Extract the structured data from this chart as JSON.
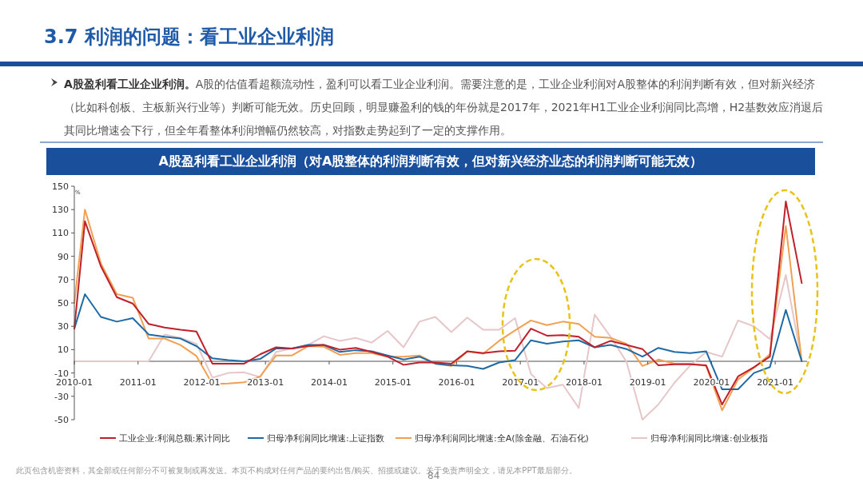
{
  "chart_data": {
    "type": "line",
    "title": "3.7 利润的问题：看工业企业利润",
    "subtitle": "A股盈利看工业企业利润（对A股整体的利润判断有效，但对新兴经济业态的利润判断可能无效）",
    "annotations": [
      "A股盈利看工业企业利润。",
      "A股的估值看超额流动性，盈利可以看工业企业利润。需要注意的是，工业企业利润对A股整体的利润判断有效，但对新兴经济（比如科创板、主板新兴行业等）判断可能无效。历史回顾，明显赚盈利的钱的年份就是2017年，2021年H1工业企业利润同比高增，H2基数效应消退后其同比增速会下行，但全年看整体利润增幅仍然较高，对指数走势起到了一定的支撑作用。",
      "此页包含机密资料，其全部或任何部分不可被复制或再发送。本页不构成对任何产品的要约出售/购买、招揽或建议。关于免责声明全文，请见本PPT最后部分。",
      "84"
    ],
    "ylabel": "%",
    "x": [
      "2010-01",
      "2010-03",
      "2010-06",
      "2010-09",
      "2010-12",
      "2011-03",
      "2011-06",
      "2011-09",
      "2011-12",
      "2012-03",
      "2012-06",
      "2012-09",
      "2012-12",
      "2013-03",
      "2013-06",
      "2013-09",
      "2013-12",
      "2014-03",
      "2014-06",
      "2014-09",
      "2014-12",
      "2015-03",
      "2015-06",
      "2015-09",
      "2015-12",
      "2016-03",
      "2016-06",
      "2016-09",
      "2016-12",
      "2017-03",
      "2017-06",
      "2017-09",
      "2017-12",
      "2018-03",
      "2018-06",
      "2018-09",
      "2018-12",
      "2019-03",
      "2019-06",
      "2019-09",
      "2019-12",
      "2020-03",
      "2020-06",
      "2020-09",
      "2020-12",
      "2021-03",
      "2021-06"
    ],
    "xlim": [
      "2010-01",
      "2021-07"
    ],
    "xticks": [
      "2010-01",
      "2011-01",
      "2012-01",
      "2013-01",
      "2014-01",
      "2015-01",
      "2016-01",
      "2017-01",
      "2018-01",
      "2019-01",
      "2020-01",
      "2021-01"
    ],
    "ylim": [
      -50,
      150
    ],
    "yticks": [
      -50,
      -30,
      -10,
      10,
      30,
      50,
      70,
      90,
      110,
      130,
      150
    ],
    "legend": "bottom",
    "series": [
      {
        "name": "工业企业:利润总额:累计同比",
        "color": "#c0202a",
        "values": [
          28,
          120,
          81.5,
          55,
          49.5,
          32,
          29,
          27,
          25.5,
          -2,
          -2,
          -2,
          6,
          12,
          11,
          13,
          14,
          10,
          11.5,
          8,
          4,
          -3,
          -1,
          -1,
          -2,
          8.5,
          7,
          8.5,
          9,
          28,
          22,
          22.5,
          21,
          12,
          17.5,
          14,
          10.5,
          -3.5,
          -2.5,
          -2.5,
          -3.5,
          -37,
          -13,
          -5,
          4,
          137,
          67
        ]
      },
      {
        "name": "归母净利润同比增速:上证指数",
        "color": "#1f6aa5",
        "values": [
          28,
          57.5,
          38,
          34,
          37,
          23,
          21,
          19.5,
          13,
          2.5,
          1,
          0,
          2,
          11,
          11,
          14,
          14,
          8,
          9.5,
          8.5,
          5,
          1.5,
          4,
          -2,
          -3.5,
          -4,
          -6.5,
          -1,
          1,
          18,
          15,
          17,
          18,
          12,
          14,
          10.5,
          4,
          11.5,
          8,
          7,
          8.5,
          -24,
          -24,
          -10,
          -5,
          44,
          0
        ]
      },
      {
        "name": "归母净利润同比增速:全A(除金融、石油石化)",
        "color": "#f0a050",
        "values": [
          50,
          130,
          84,
          57.5,
          54.5,
          19.5,
          19.5,
          14,
          4.5,
          -19.5,
          -19,
          -18,
          -13,
          5,
          5,
          13,
          12.5,
          5.5,
          7,
          7,
          4,
          4,
          5,
          -2,
          -4,
          8.5,
          6.5,
          17.5,
          26.5,
          35,
          31,
          34,
          32,
          21,
          20,
          15,
          -4,
          1.5,
          -2,
          -2,
          -4,
          -42,
          -15.5,
          -5.5,
          6,
          116,
          0
        ]
      },
      {
        "name": "归母净利润同比增速:创业板指",
        "color": "#e6c6c8",
        "values": [
          0,
          0,
          0,
          0,
          0,
          0,
          23,
          20,
          15,
          -14,
          -10,
          -9.5,
          -13.5,
          8,
          11,
          14,
          21.5,
          17.5,
          20,
          16,
          26,
          12,
          34,
          38,
          25,
          37.5,
          27,
          27,
          37,
          -11,
          -23,
          -20,
          -40,
          40,
          21,
          -0.5,
          -50,
          -37,
          -18.5,
          -3.5,
          8,
          4,
          35,
          30,
          19,
          74,
          0
        ]
      }
    ]
  }
}
